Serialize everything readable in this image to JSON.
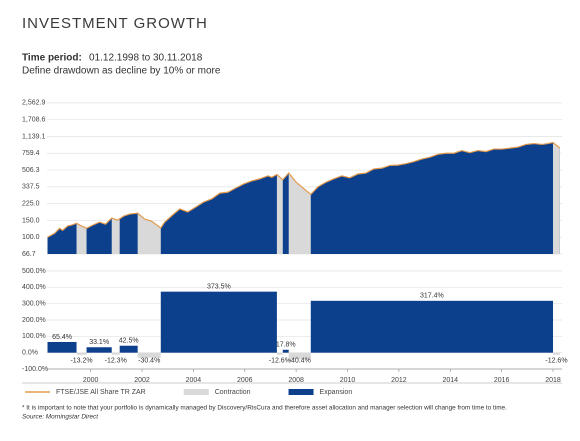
{
  "title": "INVESTMENT GROWTH",
  "time_period_label": "Time period:",
  "time_period": "01.12.1998 to 30.11.2018",
  "subtitle": "Define drawdown as decline by 10% or more",
  "footnote": "* It is important to note that your portfolio is dynamically managed by Discovery/RisCura and therefore asset allocation and manager selection will change from time to time.",
  "source": "Source: Morningstar Direct",
  "chart_data": [
    {
      "type": "area",
      "log_scale": true,
      "grid": true,
      "xlim": [
        1998.3,
        2018.35
      ],
      "ylim": [
        66.7,
        3100
      ],
      "yticks": [
        66.7,
        {
          "value": 100,
          "label": "100.0"
        },
        {
          "value": 150,
          "label": "150.0"
        },
        {
          "value": 225,
          "label": "225.0"
        },
        337.5,
        506.3,
        759.4,
        {
          "value": 1139.1,
          "label": "1,139.1"
        },
        {
          "value": 1708.6,
          "label": "1,708.6"
        },
        {
          "value": 2562.9,
          "label": "2,562.9"
        }
      ],
      "fill_color": "#0c3f8c",
      "x": [
        1998.32,
        1998.6,
        1998.79,
        1998.91,
        1999.1,
        1999.26,
        1999.45,
        1999.65,
        1999.84,
        2000.08,
        2000.35,
        2000.58,
        2000.82,
        2001.05,
        2001.29,
        2001.52,
        2001.83,
        2002.1,
        2002.38,
        2002.73,
        2002.88,
        2003.19,
        2003.47,
        2003.78,
        2004.09,
        2004.4,
        2004.71,
        2005.03,
        2005.34,
        2005.65,
        2005.96,
        2006.27,
        2006.58,
        2006.9,
        2007.05,
        2007.25,
        2007.48,
        2007.71,
        2007.99,
        2008.26,
        2008.57,
        2008.84,
        2009.15,
        2009.47,
        2009.78,
        2010.09,
        2010.4,
        2010.71,
        2011.02,
        2011.34,
        2011.65,
        2011.96,
        2012.27,
        2012.58,
        2012.89,
        2013.21,
        2013.52,
        2013.83,
        2014.14,
        2014.45,
        2014.76,
        2015.08,
        2015.39,
        2015.7,
        2016.01,
        2016.32,
        2016.63,
        2016.95,
        2017.26,
        2017.57,
        2017.8,
        2018.0,
        2018.27
      ],
      "series": [
        {
          "name": "FTSE/JSE All Share TR ZAR",
          "color": "#e39a4c",
          "values": [
            100,
            110,
            124,
            118,
            131,
            134,
            140,
            131,
            124,
            134,
            144,
            137,
            159,
            151,
            167,
            175,
            179,
            155,
            147,
            125,
            144,
            171,
            198,
            184,
            207,
            234,
            252,
            290,
            296,
            328,
            362,
            389,
            409,
            440,
            425,
            455,
            400,
            471,
            380,
            330,
            281,
            336,
            376,
            410,
            440,
            420,
            460,
            470,
            520,
            530,
            566,
            570,
            590,
            620,
            660,
            690,
            740,
            760,
            760,
            810,
            770,
            810,
            790,
            840,
            840,
            860,
            880,
            940,
            960,
            940,
            960,
            985,
            860
          ]
        }
      ]
    },
    {
      "type": "bar",
      "grid": true,
      "xlim": [
        1998.3,
        2018.35
      ],
      "xticks": [
        2000,
        2002,
        2004,
        2006,
        2008,
        2010,
        2012,
        2014,
        2016,
        2018
      ],
      "ylim": [
        -100,
        500
      ],
      "yticks": [
        {
          "value": -100,
          "label": "-100.0%"
        },
        {
          "value": 0,
          "label": "0.0%"
        },
        {
          "value": 100,
          "label": "100.0%"
        },
        {
          "value": 200,
          "label": "200.0%"
        },
        {
          "value": 300,
          "label": "300.0%"
        },
        {
          "value": 400,
          "label": "400.0%"
        },
        {
          "value": 500,
          "label": "500.0%"
        }
      ],
      "edges": [
        1998.32,
        1999.45,
        1999.84,
        2000.82,
        2001.13,
        2001.83,
        2002.73,
        2007.25,
        2007.48,
        2007.71,
        2008.57,
        2018.0,
        2018.27
      ],
      "series": [
        {
          "name": "Contraction",
          "color": "#d9d9d9",
          "values": [
            null,
            -13.2,
            null,
            -12.3,
            null,
            -30.4,
            null,
            -12.6,
            null,
            -40.4,
            null,
            -12.6
          ],
          "value_labels": [
            null,
            "-13.2%",
            null,
            "-12.3%",
            null,
            "-30.4%",
            null,
            "-12.6%",
            null,
            "-40.4%",
            null,
            "-12.6%"
          ]
        },
        {
          "name": "Expansion",
          "color": "#0c3f8c",
          "values": [
            65.4,
            null,
            33.1,
            null,
            42.5,
            null,
            373.5,
            null,
            17.8,
            null,
            317.4,
            null
          ],
          "value_labels": [
            "65.4%",
            null,
            "33.1%",
            null,
            "42.5%",
            null,
            "373.5%",
            null,
            "17.8%",
            null,
            "317.4%",
            null
          ]
        }
      ]
    }
  ]
}
